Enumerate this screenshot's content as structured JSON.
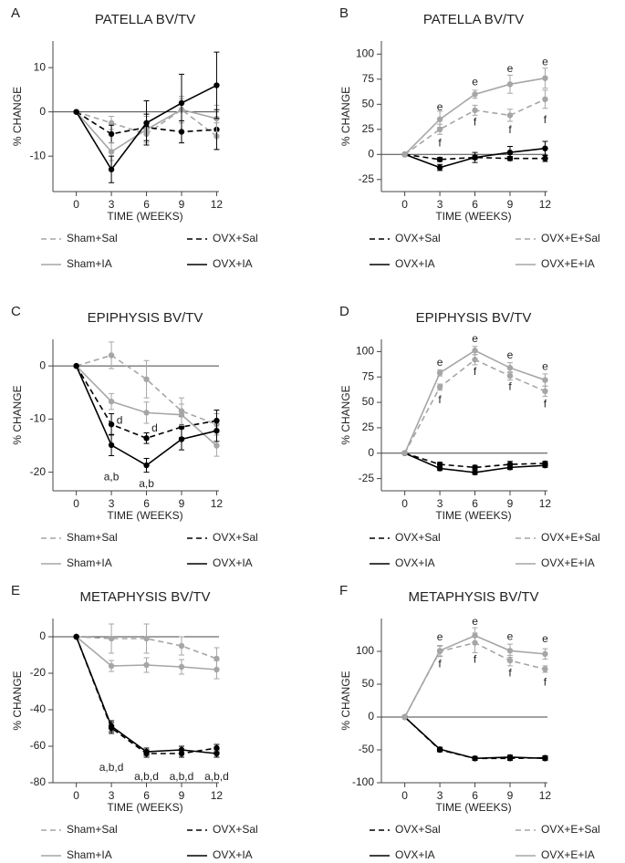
{
  "chart_data": [
    {
      "type": "line",
      "label": "A",
      "title": "PATELLA BV/TV",
      "xlabel": "TIME (WEEKS)",
      "ylabel": "% CHANGE",
      "x": [
        0,
        3,
        6,
        9,
        12
      ],
      "xlim": [
        -2,
        12.2
      ],
      "xticks": [
        0,
        3,
        6,
        9,
        12
      ],
      "ylim": [
        -18,
        16
      ],
      "yticks": [
        -10,
        0,
        10
      ],
      "series": [
        {
          "name": "Sham+Sal",
          "color": "#a6a6a6",
          "dashed": true,
          "values": [
            0,
            -2.5,
            -5,
            0.5,
            -5.5
          ],
          "errors": [
            0,
            1.5,
            2,
            2.5,
            3
          ]
        },
        {
          "name": "OVX+Sal",
          "color": "#000000",
          "dashed": true,
          "values": [
            0,
            -5,
            -3.5,
            -4.5,
            -4
          ],
          "errors": [
            0,
            2,
            3,
            2.5,
            4.5
          ]
        },
        {
          "name": "Sham+IA",
          "color": "#a6a6a6",
          "dashed": false,
          "values": [
            0,
            -9,
            -4,
            0.5,
            -1.5
          ],
          "errors": [
            0,
            2,
            3,
            3,
            3
          ]
        },
        {
          "name": "OVX+IA",
          "color": "#000000",
          "dashed": false,
          "values": [
            0,
            -13,
            -2.5,
            2,
            6
          ],
          "errors": [
            0,
            3,
            5,
            6.5,
            7.5
          ]
        }
      ],
      "annotations": []
    },
    {
      "type": "line",
      "label": "B",
      "title": "PATELLA BV/TV",
      "xlabel": "TIME (WEEKS)",
      "ylabel": "% CHANGE",
      "x": [
        0,
        3,
        6,
        9,
        12
      ],
      "xlim": [
        -2,
        12.2
      ],
      "xticks": [
        0,
        3,
        6,
        9,
        12
      ],
      "ylim": [
        -37,
        113
      ],
      "yticks": [
        -25,
        0,
        25,
        50,
        75,
        100
      ],
      "series": [
        {
          "name": "OVX+Sal",
          "color": "#000000",
          "dashed": true,
          "values": [
            0,
            -5,
            -3,
            -4,
            -4
          ],
          "errors": [
            0,
            2,
            2,
            2,
            3
          ]
        },
        {
          "name": "OVX+E+Sal",
          "color": "#a6a6a6",
          "dashed": true,
          "values": [
            0,
            25,
            44,
            39,
            55
          ],
          "errors": [
            0,
            5,
            5,
            6,
            9
          ]
        },
        {
          "name": "OVX+IA",
          "color": "#000000",
          "dashed": false,
          "values": [
            0,
            -13,
            -3,
            2,
            6
          ],
          "errors": [
            0,
            3,
            5,
            6,
            7
          ]
        },
        {
          "name": "OVX+E+IA",
          "color": "#a6a6a6",
          "dashed": false,
          "values": [
            0,
            35,
            60,
            70,
            76
          ],
          "errors": [
            0,
            8,
            4,
            9,
            10
          ]
        }
      ],
      "annotations": [
        {
          "text": "e",
          "x": 3,
          "y": 47
        },
        {
          "text": "e",
          "x": 6,
          "y": 72
        },
        {
          "text": "e",
          "x": 9,
          "y": 85
        },
        {
          "text": "e",
          "x": 12,
          "y": 92
        },
        {
          "text": "f",
          "x": 3,
          "y": 11
        },
        {
          "text": "f",
          "x": 6,
          "y": 32
        },
        {
          "text": "f",
          "x": 9,
          "y": 24
        },
        {
          "text": "f",
          "x": 12,
          "y": 34
        }
      ]
    },
    {
      "type": "line",
      "label": "C",
      "title": "EPIPHYSIS BV/TV",
      "xlabel": "TIME (WEEKS)",
      "ylabel": "% CHANGE",
      "x": [
        0,
        3,
        6,
        9,
        12
      ],
      "xlim": [
        -2,
        12.2
      ],
      "xticks": [
        0,
        3,
        6,
        9,
        12
      ],
      "ylim": [
        -23.5,
        5
      ],
      "yticks": [
        -20,
        -10,
        0
      ],
      "series": [
        {
          "name": "Sham+Sal",
          "color": "#a6a6a6",
          "dashed": true,
          "values": [
            0,
            2,
            -2.5,
            -8.5,
            -11
          ],
          "errors": [
            0,
            2.5,
            3.5,
            2.5,
            2
          ]
        },
        {
          "name": "OVX+Sal",
          "color": "#000000",
          "dashed": true,
          "values": [
            0,
            -11,
            -13.6,
            -11.5,
            -10.3
          ],
          "errors": [
            0,
            2,
            1,
            2,
            2
          ]
        },
        {
          "name": "Sham+IA",
          "color": "#a6a6a6",
          "dashed": false,
          "values": [
            0,
            -6.7,
            -8.8,
            -9.2,
            -15
          ],
          "errors": [
            0,
            1.5,
            2,
            2,
            2
          ]
        },
        {
          "name": "OVX+IA",
          "color": "#000000",
          "dashed": false,
          "values": [
            0,
            -14.9,
            -18.7,
            -13.8,
            -12.2
          ],
          "errors": [
            0,
            2,
            1.3,
            2,
            2
          ]
        }
      ],
      "annotations": [
        {
          "text": "d",
          "x": 3.7,
          "y": -10.3
        },
        {
          "text": "d",
          "x": 6.7,
          "y": -11.8
        },
        {
          "text": "a,b",
          "x": 3,
          "y": -21
        },
        {
          "text": "a,b",
          "x": 6,
          "y": -22.3
        }
      ]
    },
    {
      "type": "line",
      "label": "D",
      "title": "EPIPHYSIS BV/TV",
      "xlabel": "TIME (WEEKS)",
      "ylabel": "% CHANGE",
      "x": [
        0,
        3,
        6,
        9,
        12
      ],
      "xlim": [
        -2,
        12.2
      ],
      "xticks": [
        0,
        3,
        6,
        9,
        12
      ],
      "ylim": [
        -37,
        112
      ],
      "yticks": [
        -25,
        0,
        25,
        50,
        75,
        100
      ],
      "series": [
        {
          "name": "OVX+Sal",
          "color": "#000000",
          "dashed": true,
          "values": [
            0,
            -11,
            -14,
            -11,
            -10
          ],
          "errors": [
            0,
            2,
            2,
            3,
            2
          ]
        },
        {
          "name": "OVX+E+Sal",
          "color": "#a6a6a6",
          "dashed": true,
          "values": [
            0,
            65,
            92,
            76,
            61
          ],
          "errors": [
            0,
            3,
            5,
            4,
            5
          ]
        },
        {
          "name": "OVX+IA",
          "color": "#000000",
          "dashed": false,
          "values": [
            0,
            -15,
            -19,
            -14,
            -12
          ],
          "errors": [
            0,
            2,
            2,
            2,
            2
          ]
        },
        {
          "name": "OVX+E+IA",
          "color": "#a6a6a6",
          "dashed": false,
          "values": [
            0,
            79,
            101,
            84,
            72
          ],
          "errors": [
            0,
            3,
            4,
            5,
            6
          ]
        }
      ],
      "annotations": [
        {
          "text": "e",
          "x": 3,
          "y": 89
        },
        {
          "text": "e",
          "x": 6,
          "y": 112
        },
        {
          "text": "e",
          "x": 9,
          "y": 96
        },
        {
          "text": "e",
          "x": 12,
          "y": 85
        },
        {
          "text": "f",
          "x": 3,
          "y": 52
        },
        {
          "text": "f",
          "x": 6,
          "y": 80
        },
        {
          "text": "f",
          "x": 9,
          "y": 65
        },
        {
          "text": "f",
          "x": 12,
          "y": 48
        }
      ]
    },
    {
      "type": "line",
      "label": "E",
      "title": "METAPHYSIS BV/TV",
      "xlabel": "TIME (WEEKS)",
      "ylabel": "% CHANGE",
      "x": [
        0,
        3,
        6,
        9,
        12
      ],
      "xlim": [
        -2,
        12.2
      ],
      "xticks": [
        0,
        3,
        6,
        9,
        12
      ],
      "ylim": [
        -80,
        10
      ],
      "yticks": [
        -80,
        -60,
        -40,
        -20,
        0
      ],
      "series": [
        {
          "name": "Sham+Sal",
          "color": "#a6a6a6",
          "dashed": true,
          "values": [
            0,
            -1,
            -1,
            -5,
            -12
          ],
          "errors": [
            0,
            8,
            8,
            5,
            6
          ]
        },
        {
          "name": "OVX+Sal",
          "color": "#000000",
          "dashed": true,
          "values": [
            0,
            -50,
            -64,
            -64,
            -61
          ],
          "errors": [
            0,
            3,
            2,
            2,
            2
          ]
        },
        {
          "name": "Sham+IA",
          "color": "#a6a6a6",
          "dashed": false,
          "values": [
            0,
            -16,
            -15.5,
            -16.5,
            -18
          ],
          "errors": [
            0,
            3,
            4,
            4,
            5
          ]
        },
        {
          "name": "OVX+IA",
          "color": "#000000",
          "dashed": false,
          "values": [
            0,
            -49,
            -63,
            -62,
            -64
          ],
          "errors": [
            0,
            3,
            2,
            2,
            2
          ]
        }
      ],
      "annotations": [
        {
          "text": "a,b,d",
          "x": 3,
          "y": -72
        },
        {
          "text": "a,b,d",
          "x": 6,
          "y": -77
        },
        {
          "text": "a,b,d",
          "x": 9,
          "y": -77
        },
        {
          "text": "a,b,d",
          "x": 12,
          "y": -77
        }
      ]
    },
    {
      "type": "line",
      "label": "F",
      "title": "METAPHYSIS BV/TV",
      "xlabel": "TIME (WEEKS)",
      "ylabel": "% CHANGE",
      "x": [
        0,
        3,
        6,
        9,
        12
      ],
      "xlim": [
        -2,
        12.2
      ],
      "xticks": [
        0,
        3,
        6,
        9,
        12
      ],
      "ylim": [
        -100,
        150
      ],
      "yticks": [
        -100,
        -50,
        0,
        50,
        100
      ],
      "series": [
        {
          "name": "OVX+Sal",
          "color": "#000000",
          "dashed": true,
          "values": [
            0,
            -50,
            -63,
            -63,
            -62
          ],
          "errors": [
            0,
            3,
            3,
            3,
            3
          ]
        },
        {
          "name": "OVX+E+Sal",
          "color": "#a6a6a6",
          "dashed": true,
          "values": [
            0,
            100,
            113,
            86,
            73
          ],
          "errors": [
            0,
            8,
            15,
            8,
            5
          ]
        },
        {
          "name": "OVX+IA",
          "color": "#000000",
          "dashed": false,
          "values": [
            0,
            -49,
            -63,
            -61,
            -63
          ],
          "errors": [
            0,
            3,
            3,
            3,
            3
          ]
        },
        {
          "name": "OVX+E+IA",
          "color": "#a6a6a6",
          "dashed": false,
          "values": [
            0,
            101,
            124,
            101,
            96
          ],
          "errors": [
            0,
            8,
            12,
            10,
            8
          ]
        }
      ],
      "annotations": [
        {
          "text": "e",
          "x": 3,
          "y": 121
        },
        {
          "text": "e",
          "x": 6,
          "y": 145
        },
        {
          "text": "e",
          "x": 9,
          "y": 122
        },
        {
          "text": "e",
          "x": 12,
          "y": 118
        },
        {
          "text": "f",
          "x": 3,
          "y": 80
        },
        {
          "text": "f",
          "x": 6,
          "y": 87
        },
        {
          "text": "f",
          "x": 9,
          "y": 66
        },
        {
          "text": "f",
          "x": 12,
          "y": 52
        }
      ]
    }
  ]
}
